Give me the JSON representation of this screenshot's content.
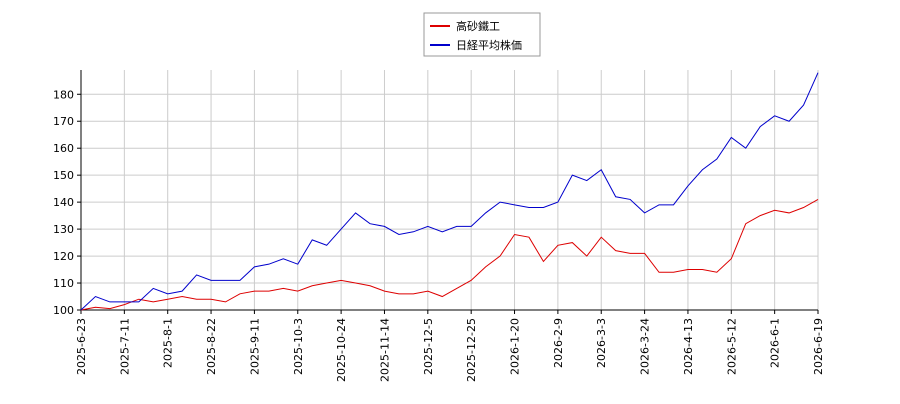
{
  "chart_data": {
    "type": "line",
    "x": [
      "2025-6-23",
      "2025-6-30",
      "2025-7-4",
      "2025-7-11",
      "2025-7-18",
      "2025-7-25",
      "2025-8-1",
      "2025-8-8",
      "2025-8-15",
      "2025-8-22",
      "2025-8-28",
      "2025-9-4",
      "2025-9-11",
      "2025-9-18",
      "2025-9-26",
      "2025-10-3",
      "2025-10-10",
      "2025-10-17",
      "2025-10-24",
      "2025-10-31",
      "2025-11-7",
      "2025-11-14",
      "2025-11-21",
      "2025-11-28",
      "2025-12-5",
      "2025-12-12",
      "2025-12-18",
      "2025-12-25",
      "2026-1-6",
      "2026-1-13",
      "2026-1-20",
      "2026-1-27",
      "2026-2-3",
      "2026-2-9",
      "2026-2-16",
      "2026-2-24",
      "2026-3-3",
      "2026-3-10",
      "2026-3-17",
      "2026-3-24",
      "2026-3-31",
      "2026-4-6",
      "2026-4-13",
      "2026-4-22",
      "2026-5-1",
      "2026-5-12",
      "2026-5-19",
      "2026-5-26",
      "2026-6-1",
      "2026-6-7",
      "2026-6-13",
      "2026-6-19"
    ],
    "series": [
      {
        "name": "高砂鐵工",
        "color": "#dd0000",
        "values": [
          100,
          101,
          100.5,
          102,
          104,
          103,
          104,
          105,
          104,
          104,
          103,
          106,
          107,
          107,
          108,
          107,
          109,
          110,
          111,
          110,
          109,
          107,
          106,
          106,
          107,
          105,
          108,
          111,
          116,
          120,
          128,
          127,
          118,
          124,
          125,
          120,
          127,
          122,
          121,
          121,
          114,
          114,
          115,
          115,
          114,
          119,
          132,
          135,
          137,
          136,
          138,
          141
        ]
      },
      {
        "name": "日経平均株価",
        "color": "#0000cc",
        "values": [
          100,
          105,
          103,
          103,
          103,
          108,
          106,
          107,
          113,
          111,
          111,
          111,
          116,
          117,
          119,
          117,
          126,
          124,
          130,
          136,
          132,
          131,
          128,
          129,
          131,
          129,
          131,
          131,
          136,
          140,
          139,
          138,
          138,
          140,
          150,
          148,
          152,
          142,
          141,
          136,
          139,
          139,
          146,
          152,
          156,
          164,
          160,
          168,
          172,
          170,
          176,
          188
        ]
      }
    ],
    "xticks": [
      "2025-6-23",
      "2025-7-11",
      "2025-8-1",
      "2025-8-22",
      "2025-9-11",
      "2025-10-3",
      "2025-10-24",
      "2025-11-14",
      "2025-12-5",
      "2025-12-25",
      "2026-1-20",
      "2026-2-9",
      "2026-3-3",
      "2026-3-24",
      "2026-4-13",
      "2026-5-12",
      "2026-6-1",
      "2026-6-19"
    ],
    "ylim": [
      100,
      189
    ],
    "yticks": [
      100,
      110,
      120,
      130,
      140,
      150,
      160,
      170,
      180
    ],
    "grid": true,
    "legend": "top"
  }
}
